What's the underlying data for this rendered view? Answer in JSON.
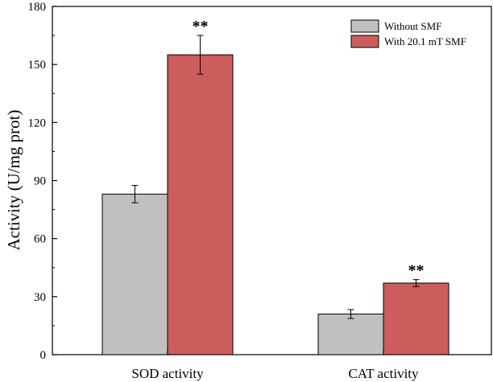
{
  "colors": {
    "without": "#c0c0c0",
    "with": "#cd5c5c",
    "axis": "#000000"
  },
  "chart_data": {
    "type": "bar",
    "title": "",
    "xlabel": "",
    "ylabel": "Activity (U/mg prot)",
    "ylim": [
      0,
      180
    ],
    "yticks": [
      "0",
      "30",
      "60",
      "90",
      "120",
      "150",
      "180"
    ],
    "categories": [
      "SOD activity",
      "CAT activity"
    ],
    "series": [
      {
        "name": "Without SMF",
        "values": [
          83,
          21
        ],
        "errors": [
          4.5,
          2.3
        ]
      },
      {
        "name": "With 20.1 mT SMF",
        "values": [
          155,
          37
        ],
        "errors": [
          10,
          1.8
        ]
      }
    ],
    "annotations": [
      {
        "category": "SOD activity",
        "series": "With 20.1 mT SMF",
        "text": "**"
      },
      {
        "category": "CAT activity",
        "series": "With 20.1 mT SMF",
        "text": "**"
      }
    ],
    "legend_position": "top-right"
  }
}
